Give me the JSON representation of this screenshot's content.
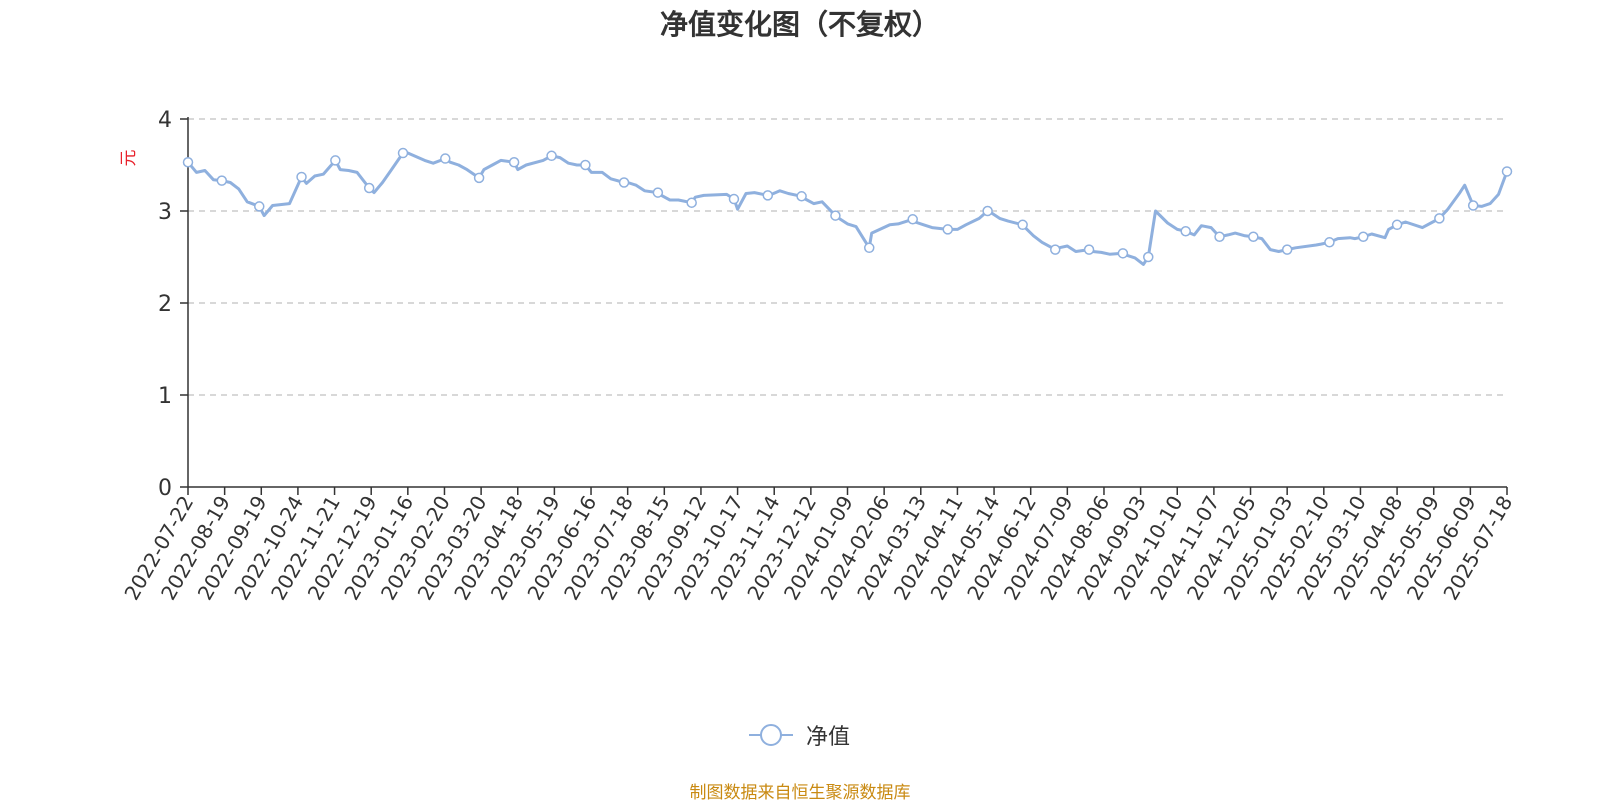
{
  "colors": {
    "line": "#8fb0de",
    "ylabel": "#e8202a",
    "source": "#c98a12",
    "axis": "#333333",
    "grid": "#cccccc"
  },
  "chart_data": {
    "type": "line",
    "title": "净值变化图（不复权）",
    "ylabel": "元",
    "ylim": [
      0,
      4
    ],
    "yticks": [
      0,
      1,
      2,
      3,
      4
    ],
    "grid": "horizontal dashed",
    "legend_position": "bottom-center",
    "x_tick_labels": [
      "2022-07-22",
      "2022-08-19",
      "2022-09-19",
      "2022-10-24",
      "2022-11-21",
      "2022-12-19",
      "2023-01-16",
      "2023-02-20",
      "2023-03-20",
      "2023-04-18",
      "2023-05-19",
      "2023-06-16",
      "2023-07-18",
      "2023-08-15",
      "2023-09-12",
      "2023-10-17",
      "2023-11-14",
      "2023-12-12",
      "2024-01-09",
      "2024-02-06",
      "2024-03-13",
      "2024-04-11",
      "2024-05-14",
      "2024-06-12",
      "2024-07-09",
      "2024-08-06",
      "2024-09-03",
      "2024-10-10",
      "2024-11-07",
      "2024-12-05",
      "2025-01-03",
      "2025-02-10",
      "2025-03-10",
      "2025-04-08",
      "2025-05-09",
      "2025-06-09",
      "2025-07-18"
    ],
    "series": [
      {
        "name": "净值",
        "x": [
          "2022-07-22",
          "2022-07-29",
          "2022-08-05",
          "2022-08-12",
          "2022-08-19",
          "2022-08-26",
          "2022-09-02",
          "2022-09-09",
          "2022-09-19",
          "2022-09-23",
          "2022-09-30",
          "2022-10-14",
          "2022-10-24",
          "2022-10-28",
          "2022-11-04",
          "2022-11-11",
          "2022-11-21",
          "2022-11-25",
          "2022-12-02",
          "2022-12-09",
          "2022-12-19",
          "2022-12-23",
          "2022-12-30",
          "2023-01-06",
          "2023-01-16",
          "2023-01-20",
          "2023-02-03",
          "2023-02-10",
          "2023-02-20",
          "2023-02-24",
          "2023-03-03",
          "2023-03-10",
          "2023-03-20",
          "2023-03-24",
          "2023-03-31",
          "2023-04-07",
          "2023-04-18",
          "2023-04-21",
          "2023-04-28",
          "2023-05-12",
          "2023-05-19",
          "2023-05-26",
          "2023-06-02",
          "2023-06-09",
          "2023-06-16",
          "2023-06-21",
          "2023-06-30",
          "2023-07-07",
          "2023-07-18",
          "2023-07-21",
          "2023-07-28",
          "2023-08-04",
          "2023-08-15",
          "2023-08-18",
          "2023-08-25",
          "2023-09-01",
          "2023-09-12",
          "2023-09-15",
          "2023-09-22",
          "2023-10-11",
          "2023-10-17",
          "2023-10-20",
          "2023-10-27",
          "2023-11-03",
          "2023-11-14",
          "2023-11-17",
          "2023-11-24",
          "2023-12-01",
          "2023-12-12",
          "2023-12-15",
          "2023-12-22",
          "2023-12-29",
          "2024-01-09",
          "2024-01-12",
          "2024-01-19",
          "2024-01-26",
          "2024-02-06",
          "2024-02-08",
          "2024-02-23",
          "2024-03-01",
          "2024-03-13",
          "2024-03-15",
          "2024-03-22",
          "2024-03-29",
          "2024-04-11",
          "2024-04-19",
          "2024-04-26",
          "2024-05-07",
          "2024-05-14",
          "2024-05-17",
          "2024-05-24",
          "2024-05-31",
          "2024-06-12",
          "2024-06-14",
          "2024-06-21",
          "2024-06-28",
          "2024-07-09",
          "2024-07-12",
          "2024-07-19",
          "2024-07-26",
          "2024-08-06",
          "2024-08-09",
          "2024-08-16",
          "2024-08-23",
          "2024-09-03",
          "2024-09-06",
          "2024-09-13",
          "2024-09-20",
          "2024-09-24",
          "2024-09-30",
          "2024-10-10",
          "2024-10-18",
          "2024-10-25",
          "2024-11-01",
          "2024-11-07",
          "2024-11-15",
          "2024-11-22",
          "2024-11-29",
          "2024-12-05",
          "2024-12-13",
          "2024-12-20",
          "2024-12-27",
          "2025-01-03",
          "2025-01-10",
          "2025-01-17",
          "2025-01-24",
          "2025-02-10",
          "2025-02-14",
          "2025-02-21",
          "2025-02-28",
          "2025-03-10",
          "2025-03-14",
          "2025-03-21",
          "2025-03-28",
          "2025-04-08",
          "2025-04-11",
          "2025-04-18",
          "2025-04-25",
          "2025-05-09",
          "2025-05-16",
          "2025-05-23",
          "2025-05-30",
          "2025-06-09",
          "2025-06-13",
          "2025-06-20",
          "2025-06-27",
          "2025-07-04",
          "2025-07-11",
          "2025-07-18"
        ],
        "values": [
          3.53,
          3.42,
          3.44,
          3.34,
          3.33,
          3.31,
          3.24,
          3.1,
          3.05,
          2.95,
          3.06,
          3.08,
          3.37,
          3.3,
          3.38,
          3.4,
          3.55,
          3.45,
          3.44,
          3.42,
          3.25,
          3.2,
          3.31,
          3.44,
          3.63,
          3.63,
          3.55,
          3.52,
          3.57,
          3.53,
          3.5,
          3.45,
          3.36,
          3.45,
          3.5,
          3.55,
          3.53,
          3.45,
          3.5,
          3.55,
          3.6,
          3.58,
          3.52,
          3.5,
          3.5,
          3.42,
          3.42,
          3.35,
          3.31,
          3.31,
          3.28,
          3.22,
          3.2,
          3.17,
          3.12,
          3.12,
          3.09,
          3.15,
          3.17,
          3.18,
          3.13,
          3.02,
          3.19,
          3.2,
          3.17,
          3.18,
          3.22,
          3.19,
          3.16,
          3.13,
          3.08,
          3.1,
          2.95,
          2.92,
          2.86,
          2.83,
          2.6,
          2.76,
          2.85,
          2.86,
          2.91,
          2.88,
          2.85,
          2.82,
          2.8,
          2.8,
          2.85,
          2.92,
          3.0,
          2.98,
          2.92,
          2.89,
          2.85,
          2.82,
          2.73,
          2.66,
          2.58,
          2.6,
          2.62,
          2.56,
          2.58,
          2.56,
          2.55,
          2.53,
          2.54,
          2.52,
          2.49,
          2.42,
          2.5,
          3.0,
          2.87,
          2.8,
          2.78,
          2.74,
          2.84,
          2.82,
          2.72,
          2.74,
          2.76,
          2.73,
          2.72,
          2.7,
          2.58,
          2.56,
          2.58,
          2.6,
          2.63,
          2.64,
          2.66,
          2.7,
          2.71,
          2.7,
          2.72,
          2.75,
          2.71,
          2.8,
          2.85,
          2.88,
          2.82,
          2.87,
          2.92,
          3.02,
          3.2,
          3.28,
          3.06,
          3.05,
          3.08,
          3.18,
          3.43
        ]
      }
    ]
  },
  "legend": {
    "label": "净值"
  },
  "source": "制图数据来自恒生聚源数据库"
}
